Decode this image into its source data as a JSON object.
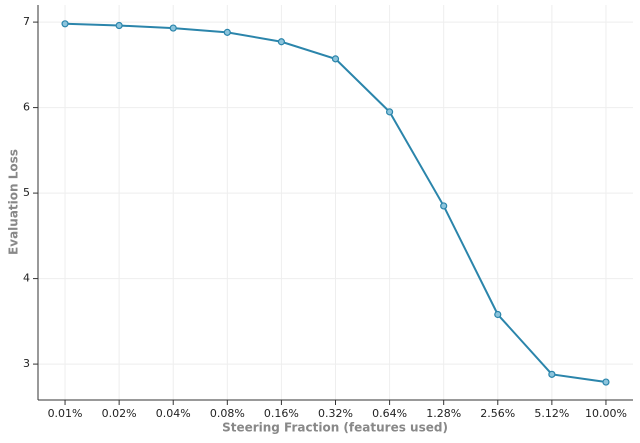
{
  "chart_data": {
    "type": "line",
    "x_label": "Steering Fraction (features used)",
    "y_label": "Evaluation Loss",
    "categories": [
      "0.01%",
      "0.02%",
      "0.04%",
      "0.08%",
      "0.16%",
      "0.32%",
      "0.64%",
      "1.28%",
      "2.56%",
      "5.12%",
      "10.00%"
    ],
    "values": [
      6.98,
      6.96,
      6.93,
      6.88,
      6.77,
      6.57,
      5.95,
      4.85,
      3.58,
      2.88,
      2.79
    ],
    "color": "#2b85ab",
    "ylim": [
      2.58,
      7.2
    ],
    "yticks": [
      3,
      4,
      5,
      6,
      7
    ],
    "grid": true
  }
}
